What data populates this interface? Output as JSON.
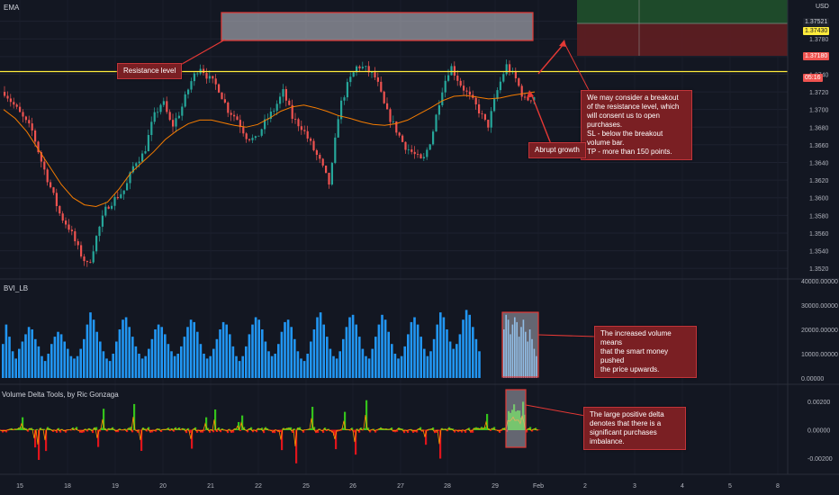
{
  "panels": {
    "price_label": "EMA",
    "currency": "USD",
    "volume_label": "BVI_LB",
    "delta_label": "Volume Delta Tools, by Ric Gonzaga"
  },
  "price_tags": {
    "top": "1.37521",
    "line": "1.37430",
    "current": "1.37180",
    "countdown": "05:16"
  },
  "annotations": {
    "resistance": "Resistance level",
    "breakout": "We may consider a breakout\nof the resistance level, which\nwill consent us to open purchases.\nSL - below the breakout volume bar.\nTP - more than 150 points.",
    "growth": "Abrupt growth",
    "volume": "The increased volume means\nthat the smart money pushed\nthe price upwards.",
    "delta": "The large positive delta\ndenotes that there is a\nsignificant purchases imbalance."
  },
  "chart_data": [
    {
      "type": "candlestick",
      "title": "",
      "series": [
        {
          "name": "EMA"
        }
      ],
      "y_ticks": [
        "1.3800",
        "1.3780",
        "1.3760",
        "1.3740",
        "1.3720",
        "1.3700",
        "1.3680",
        "1.3660",
        "1.3640",
        "1.3620",
        "1.3600",
        "1.3580",
        "1.3560",
        "1.3540",
        "1.3520"
      ],
      "ylim": [
        1.351,
        1.382
      ],
      "x_ticks": [
        "15",
        "18",
        "19",
        "20",
        "21",
        "22",
        "25",
        "26",
        "27",
        "28",
        "29",
        "Feb",
        "2",
        "3",
        "4",
        "5",
        "8"
      ],
      "resistance_level": 1.3743,
      "close_path": [
        1.372,
        1.3705,
        1.369,
        1.3675,
        1.364,
        1.361,
        1.358,
        1.3565,
        1.354,
        1.3522,
        1.356,
        1.359,
        1.36,
        1.361,
        1.364,
        1.365,
        1.369,
        1.371,
        1.368,
        1.37,
        1.373,
        1.375,
        1.3735,
        1.3725,
        1.37,
        1.369,
        1.367,
        1.3665,
        1.3685,
        1.37,
        1.372,
        1.369,
        1.368,
        1.366,
        1.364,
        1.3614,
        1.37,
        1.373,
        1.375,
        1.3745,
        1.3735,
        1.37,
        1.368,
        1.366,
        1.365,
        1.364,
        1.367,
        1.372,
        1.375,
        1.373,
        1.3715,
        1.37,
        1.368,
        1.372,
        1.375,
        1.3735,
        1.371,
        1.3715
      ],
      "ema_path": [
        1.37,
        1.369,
        1.3675,
        1.3655,
        1.3635,
        1.3615,
        1.36,
        1.3592,
        1.359,
        1.3595,
        1.361,
        1.3628,
        1.364,
        1.3652,
        1.3666,
        1.3676,
        1.3684,
        1.3688,
        1.3688,
        1.3685,
        1.3682,
        1.368,
        1.3683,
        1.369,
        1.3698,
        1.3703,
        1.3705,
        1.3702,
        1.3698,
        1.3693,
        1.369,
        1.3686,
        1.3683,
        1.3682,
        1.3684,
        1.3688,
        1.3695,
        1.3702,
        1.371,
        1.3715,
        1.3716,
        1.3714,
        1.3712,
        1.3713,
        1.3716,
        1.3718,
        1.372
      ]
    },
    {
      "type": "bar",
      "title": "",
      "series": [
        {
          "name": "BVI_LB"
        }
      ],
      "y_ticks": [
        "40000.00000",
        "30000.00000",
        "20000.00000",
        "10000.00000",
        "0.00000"
      ],
      "ylim": [
        0,
        40000
      ],
      "values": [
        14000,
        22000,
        17000,
        11000,
        8000,
        12000,
        15000,
        18000,
        21000,
        20000,
        16000,
        13000,
        9000,
        7000,
        10000,
        14000,
        17000,
        19000,
        18000,
        15000,
        12000,
        9000,
        8000,
        9000,
        12000,
        16000,
        22000,
        27000,
        24000,
        19000,
        15000,
        11000,
        8000,
        7000,
        10000,
        15000,
        20000,
        24000,
        25000,
        21000,
        17000,
        13000,
        10000,
        8000,
        9000,
        12000,
        16000,
        20000,
        22000,
        21000,
        18000,
        14000,
        11000,
        9000,
        10000,
        13000,
        17000,
        21000,
        24000,
        23000,
        19000,
        14000,
        10000,
        8000,
        9000,
        12000,
        16000,
        20000,
        23000,
        22000,
        18000,
        13000,
        9000,
        7000,
        9000,
        13000,
        18000,
        22000,
        25000,
        24000,
        20000,
        15000,
        11000,
        9000,
        10000,
        14000,
        19000,
        23000,
        24000,
        21000,
        16000,
        11000,
        8000,
        7000,
        10000,
        15000,
        20000,
        25000,
        27000,
        22000,
        17000,
        12000,
        9000,
        8000,
        11000,
        16000,
        21000,
        25000,
        26000,
        22000,
        17000,
        12000,
        9000,
        8000,
        12000,
        17000,
        22000,
        26000,
        24000,
        19000,
        14000,
        10000,
        8000,
        9000,
        13000,
        18000,
        23000,
        25000,
        22000,
        17000,
        12000,
        9000,
        11000,
        16000,
        22000,
        27000,
        25000,
        20000,
        15000,
        12000,
        14000,
        18000,
        24000,
        28000,
        26000,
        21000,
        16000,
        11000
      ],
      "highlighted": [
        20000,
        26000,
        24000,
        18000,
        22000,
        25000,
        23000,
        17000,
        21000,
        24000,
        19000,
        15000,
        20000,
        16000,
        12000,
        9000
      ]
    },
    {
      "type": "area",
      "title": "",
      "series": [
        {
          "name": "Volume Delta Tools, by Ric Gonzaga"
        }
      ],
      "y_ticks": [
        "0.00200",
        "0.00000",
        "-0.00200"
      ],
      "ylim": [
        -0.003,
        0.003
      ]
    }
  ],
  "colors": {
    "background": "#131722",
    "bull": "#26a69a",
    "bear": "#ef5350",
    "ema": "#f57c00",
    "resistance": "#ffeb3b",
    "volume": "#2196f3",
    "delta_pos": "#34c31c",
    "delta_neg": "#e0141c",
    "annotation": "#7a1f23"
  }
}
